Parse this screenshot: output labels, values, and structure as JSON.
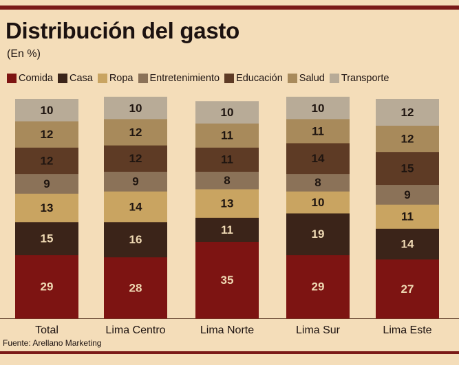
{
  "chart_data": {
    "type": "bar",
    "stacked": true,
    "title": "Distribución del gasto",
    "subtitle": "(En %)",
    "categories": [
      "Total",
      "Lima Centro",
      "Lima Norte",
      "Lima Sur",
      "Lima Este"
    ],
    "series": [
      {
        "name": "Comida",
        "color": "#7d1412",
        "values": [
          29,
          28,
          35,
          29,
          27
        ]
      },
      {
        "name": "Casa",
        "color": "#3b2419",
        "values": [
          15,
          16,
          11,
          19,
          14
        ]
      },
      {
        "name": "Ropa",
        "color": "#c9a461",
        "values": [
          13,
          14,
          13,
          10,
          11
        ]
      },
      {
        "name": "Entretenimiento",
        "color": "#8b7258",
        "values": [
          9,
          9,
          8,
          8,
          9
        ]
      },
      {
        "name": "Educación",
        "color": "#5e3b25",
        "values": [
          12,
          12,
          11,
          14,
          15
        ]
      },
      {
        "name": "Salud",
        "color": "#a88a5b",
        "values": [
          12,
          12,
          11,
          11,
          12
        ]
      },
      {
        "name": "Transporte",
        "color": "#b8ab97",
        "values": [
          10,
          10,
          10,
          10,
          12
        ]
      }
    ],
    "ylim": [
      0,
      100
    ],
    "legend_position": "top",
    "grid": false
  },
  "source": "Fuente: Arellano Marketing"
}
